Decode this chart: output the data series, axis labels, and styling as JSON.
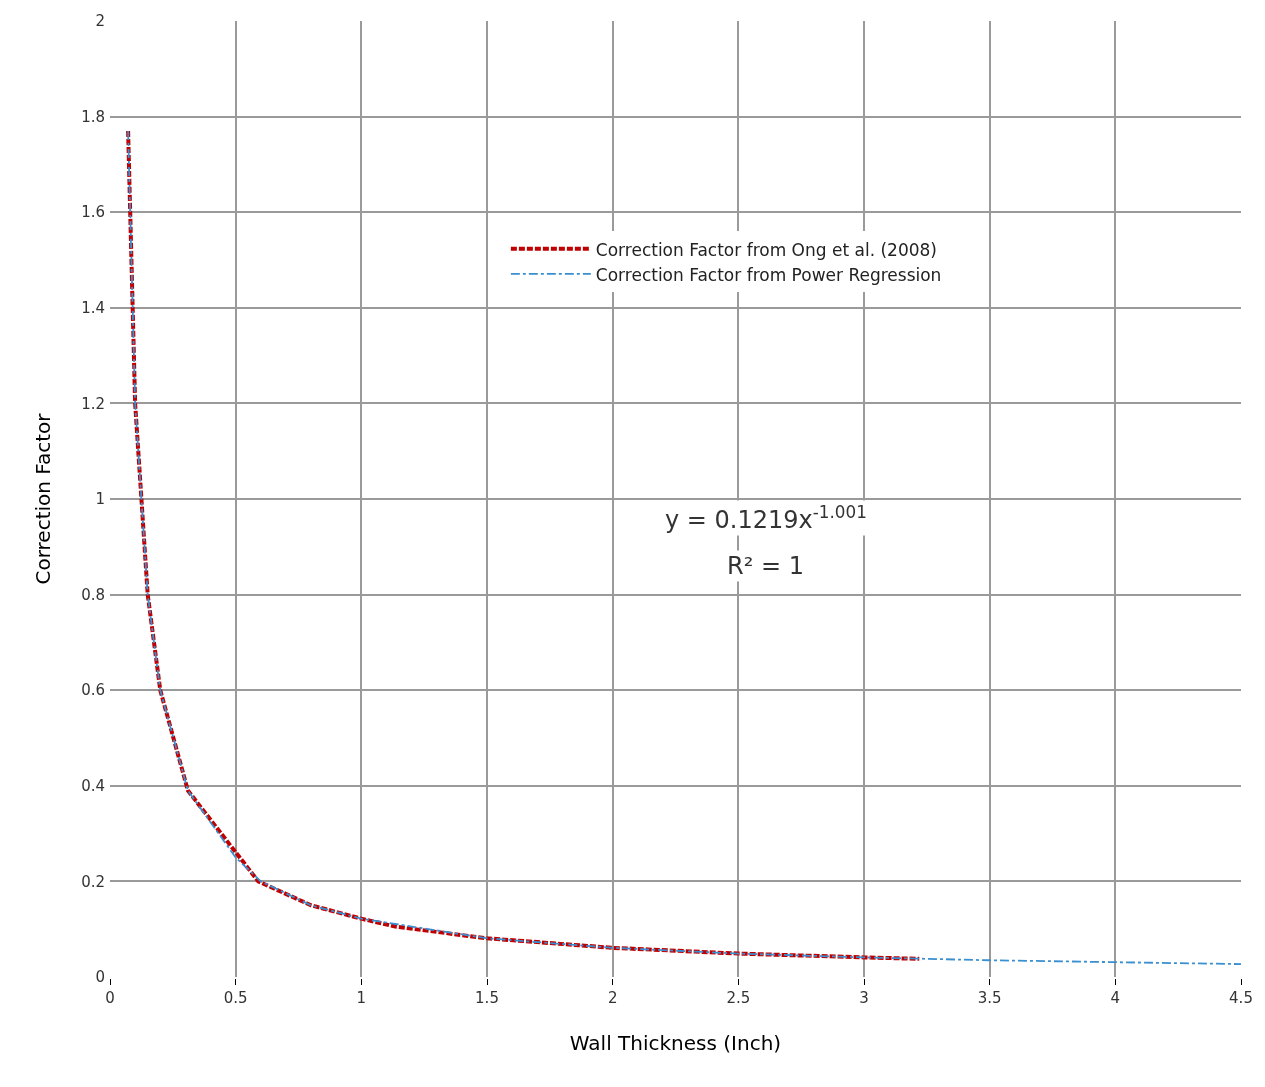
{
  "chart_data": {
    "type": "line",
    "xlabel": "Wall Thickness (Inch)",
    "ylabel": "Correction Factor",
    "xlim": [
      0,
      4.5
    ],
    "xticks": [
      0,
      0.5,
      1,
      1.5,
      2,
      2.5,
      3,
      3.5,
      4,
      4.5
    ],
    "ylim": [
      0,
      2
    ],
    "yticks": [
      0,
      0.2,
      0.4,
      0.6,
      0.8,
      1,
      1.2,
      1.4,
      1.6,
      1.8,
      2
    ],
    "grid": true,
    "legend": "top right",
    "marker": "none",
    "series": [
      {
        "name": "Correction Factor from Ong et al. (2008)",
        "color": "#c00000",
        "line_style": "dashed",
        "x": [
          0.072,
          0.1,
          0.15,
          0.2,
          0.31,
          0.59,
          0.8,
          1.0,
          1.14,
          1.5,
          2,
          2.5,
          3,
          3.22
        ],
        "values": [
          1.77,
          1.2,
          0.8,
          0.6,
          0.39,
          0.2,
          0.15,
          0.122,
          0.105,
          0.081,
          0.061,
          0.049,
          0.041,
          0.038
        ]
      },
      {
        "name": "Correction Factor from Power Regression",
        "color": "#3a8fd0",
        "line_style": "dashdot",
        "x": [
          0.072,
          0.1,
          0.15,
          0.2,
          0.31,
          0.5,
          0.6,
          0.8,
          1,
          1.5,
          2,
          2.5,
          3,
          3.5,
          4,
          4.5
        ],
        "values": [
          1.77,
          1.2,
          0.8,
          0.6,
          0.39,
          0.25,
          0.2,
          0.15,
          0.122,
          0.081,
          0.061,
          0.049,
          0.041,
          0.035,
          0.031,
          0.027
        ]
      }
    ],
    "annotations": [
      "y = 0.1219x$^{-1.001}$",
      "R² = 1"
    ]
  }
}
